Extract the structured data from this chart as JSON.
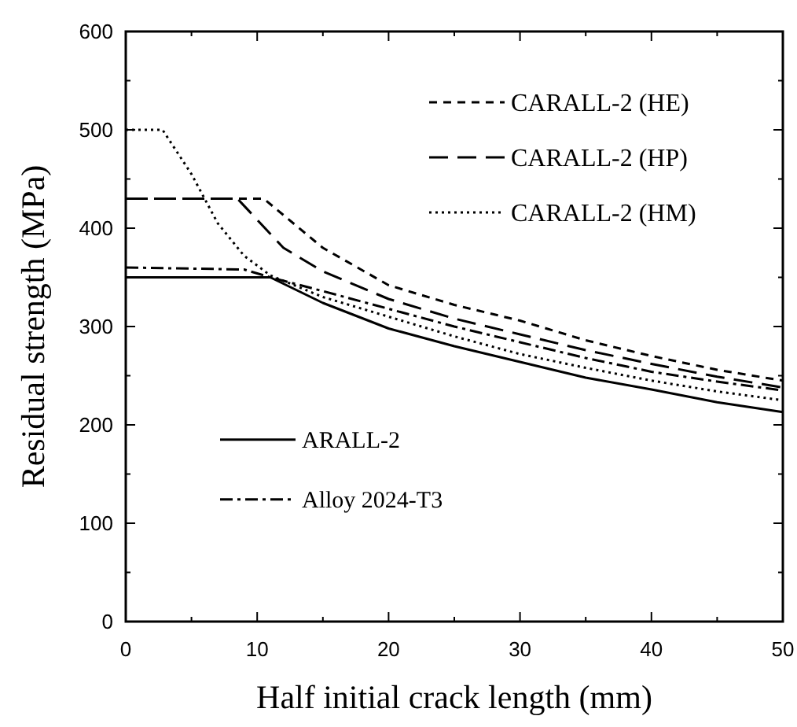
{
  "chart_data": {
    "type": "line",
    "xlabel": "Half initial crack length (mm)",
    "ylabel": "Residual strength (MPa)",
    "xlim": [
      0,
      50
    ],
    "ylim": [
      0,
      600
    ],
    "xticks": [
      0,
      {
        "value": 5,
        "label": null
      },
      10,
      {
        "value": 15,
        "label": null
      },
      20,
      {
        "value": 25,
        "label": null
      },
      30,
      {
        "value": 35,
        "label": null
      },
      40,
      {
        "value": 45,
        "label": null
      },
      50
    ],
    "yticks": [
      0,
      {
        "value": 50,
        "label": null
      },
      100,
      {
        "value": 150,
        "label": null
      },
      200,
      {
        "value": 250,
        "label": null
      },
      300,
      {
        "value": 350,
        "label": null
      },
      400,
      {
        "value": 450,
        "label": null
      },
      500,
      {
        "value": 550,
        "label": null
      },
      600
    ],
    "grid": false,
    "legend": "top right",
    "series": [
      {
        "name": "CARALL-2 (HE)",
        "color": "#000000",
        "line_style": "dashed",
        "x": [
          0,
          10.5,
          15,
          20,
          25,
          30,
          35,
          40,
          45,
          50
        ],
        "values": [
          430,
          430,
          380,
          342,
          322,
          306,
          286,
          270,
          256,
          245
        ]
      },
      {
        "name": "CARALL-2 (HP)",
        "color": "#000000",
        "line_style": "longdash",
        "x": [
          0,
          8.5,
          12,
          15,
          20,
          25,
          30,
          35,
          40,
          45,
          50
        ],
        "values": [
          430,
          430,
          380,
          356,
          328,
          308,
          292,
          276,
          262,
          249,
          238
        ]
      },
      {
        "name": "CARALL-2 (HM)",
        "color": "#000000",
        "line_style": "dotted",
        "x": [
          0,
          2.8,
          5,
          7,
          9,
          11,
          15,
          20,
          25,
          30,
          35,
          40,
          45,
          50
        ],
        "values": [
          500,
          500,
          455,
          405,
          372,
          352,
          330,
          310,
          290,
          272,
          258,
          245,
          234,
          225
        ]
      },
      {
        "name": "ARALL-2",
        "color": "#000000",
        "line_style": "solid",
        "x": [
          0,
          11,
          15,
          20,
          25,
          30,
          35,
          40,
          45,
          50
        ],
        "values": [
          350,
          350,
          324,
          298,
          280,
          264,
          248,
          236,
          223,
          213
        ]
      },
      {
        "name": "Alloy 2024-T3",
        "color": "#000000",
        "line_style": "dashdot",
        "x": [
          0,
          9,
          11,
          15,
          20,
          25,
          30,
          35,
          40,
          45,
          50
        ],
        "values": [
          360,
          358,
          350,
          336,
          318,
          300,
          284,
          268,
          254,
          244,
          235
        ]
      }
    ]
  }
}
